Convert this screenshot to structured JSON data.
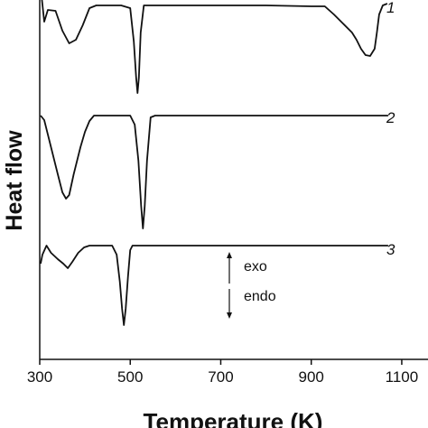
{
  "chart_data": {
    "type": "line",
    "title": "",
    "xlabel": "Temperature (K)",
    "ylabel": "Heat flow",
    "xlim": [
      300,
      1150
    ],
    "x_ticks": [
      300,
      500,
      700,
      900,
      1100
    ],
    "grid": false,
    "legend": "none",
    "series": [
      {
        "name": "1",
        "points": [
          [
            302,
            20
          ],
          [
            310,
            -18
          ],
          [
            318,
            -5
          ],
          [
            335,
            -6
          ],
          [
            350,
            -28
          ],
          [
            365,
            -42
          ],
          [
            380,
            -38
          ],
          [
            395,
            -22
          ],
          [
            410,
            -3
          ],
          [
            425,
            0
          ],
          [
            480,
            0
          ],
          [
            500,
            -3
          ],
          [
            508,
            -40
          ],
          [
            513,
            -80
          ],
          [
            516,
            -97
          ],
          [
            519,
            -80
          ],
          [
            523,
            -30
          ],
          [
            530,
            0
          ],
          [
            600,
            0
          ],
          [
            700,
            0
          ],
          [
            800,
            0
          ],
          [
            900,
            -1
          ],
          [
            930,
            -1
          ],
          [
            950,
            -10
          ],
          [
            970,
            -20
          ],
          [
            990,
            -30
          ],
          [
            1000,
            -38
          ],
          [
            1010,
            -48
          ],
          [
            1020,
            -55
          ],
          [
            1030,
            -56
          ],
          [
            1040,
            -48
          ],
          [
            1045,
            -30
          ],
          [
            1050,
            -10
          ],
          [
            1058,
            0
          ],
          [
            1068,
            2
          ]
        ]
      },
      {
        "name": "2",
        "points": [
          [
            302,
            0
          ],
          [
            310,
            -5
          ],
          [
            320,
            -25
          ],
          [
            330,
            -45
          ],
          [
            340,
            -65
          ],
          [
            350,
            -85
          ],
          [
            358,
            -92
          ],
          [
            365,
            -88
          ],
          [
            375,
            -65
          ],
          [
            390,
            -35
          ],
          [
            400,
            -18
          ],
          [
            410,
            -6
          ],
          [
            420,
            0
          ],
          [
            450,
            0
          ],
          [
            500,
            0
          ],
          [
            510,
            -10
          ],
          [
            518,
            -50
          ],
          [
            524,
            -100
          ],
          [
            528,
            -125
          ],
          [
            532,
            -100
          ],
          [
            537,
            -50
          ],
          [
            545,
            -2
          ],
          [
            555,
            0
          ],
          [
            700,
            0
          ],
          [
            850,
            0
          ],
          [
            1000,
            0
          ],
          [
            1070,
            0
          ]
        ]
      },
      {
        "name": "3",
        "points": [
          [
            302,
            -20
          ],
          [
            306,
            -10
          ],
          [
            315,
            0
          ],
          [
            325,
            -8
          ],
          [
            340,
            -15
          ],
          [
            352,
            -20
          ],
          [
            362,
            -25
          ],
          [
            372,
            -18
          ],
          [
            385,
            -8
          ],
          [
            398,
            -2
          ],
          [
            410,
            0
          ],
          [
            430,
            0
          ],
          [
            460,
            0
          ],
          [
            470,
            -10
          ],
          [
            477,
            -40
          ],
          [
            482,
            -70
          ],
          [
            486,
            -88
          ],
          [
            490,
            -70
          ],
          [
            495,
            -35
          ],
          [
            500,
            -5
          ],
          [
            505,
            0
          ],
          [
            600,
            0
          ],
          [
            800,
            0
          ],
          [
            1000,
            0
          ],
          [
            1070,
            0
          ]
        ]
      }
    ],
    "curve_labels": [
      "1",
      "2",
      "3"
    ],
    "annotations": {
      "exo": "exo",
      "endo": "endo"
    }
  }
}
